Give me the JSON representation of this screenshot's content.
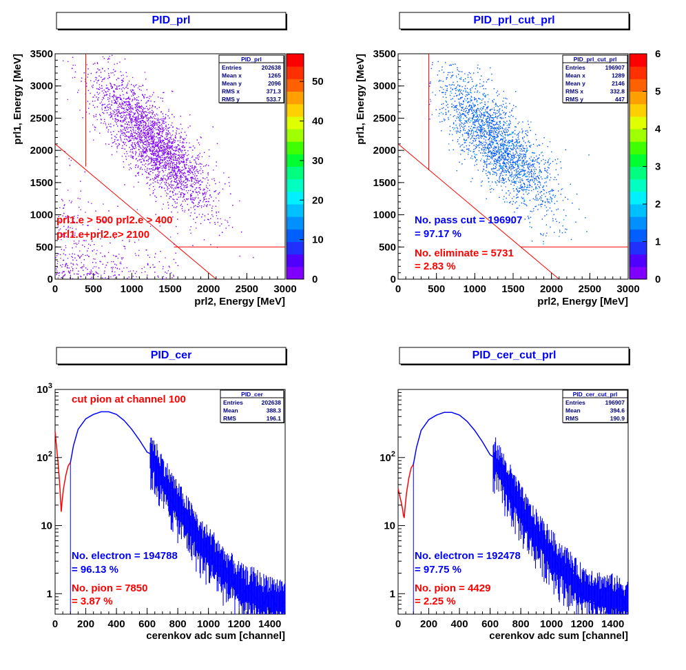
{
  "chart_data": [
    {
      "type": "heatmap",
      "title": "PID_prl",
      "xlabel": "prl2, Energy [MeV]",
      "ylabel": "prl1, Energy [MeV]",
      "xlim": [
        0,
        3000
      ],
      "ylim": [
        0,
        3500
      ],
      "xticks": [
        "0",
        "500",
        "1000",
        "1500",
        "2000",
        "2500",
        "3000"
      ],
      "yticks": [
        "0",
        "500",
        "1000",
        "1500",
        "2000",
        "2500",
        "3000",
        "3500"
      ],
      "colorbar": {
        "max": 57,
        "ticks": [
          "0",
          "10",
          "20",
          "30",
          "40",
          "50"
        ]
      },
      "point_color": "#8000ff",
      "stats": {
        "name": "PID_prl",
        "rows": [
          {
            "label": "Entries",
            "value": "202638"
          },
          {
            "label": "Mean x",
            "value": "1265"
          },
          {
            "label": "Mean y",
            "value": "2096"
          },
          {
            "label": "RMS x",
            "value": "371.3"
          },
          {
            "label": "RMS y",
            "value": "533.7"
          }
        ]
      },
      "cut_lines": {
        "vertical_x": 400,
        "vertical_y_from": 1750,
        "horizontal_y": 500,
        "horizontal_x_from": 1550,
        "diagonal_sum": 2100
      },
      "annotations": [
        {
          "text": "prl1.e > 500 prl2.e > 400",
          "color": "#ff0000"
        },
        {
          "text": "prl1.e+prl2.e> 2100",
          "color": "#ff0000"
        }
      ]
    },
    {
      "type": "heatmap",
      "title": "PID_prl_cut_prl",
      "xlabel": "prl2, Energy [MeV]",
      "ylabel": "prl1, Energy [MeV]",
      "xlim": [
        0,
        3000
      ],
      "ylim": [
        0,
        3500
      ],
      "xticks": [
        "0",
        "500",
        "1000",
        "1500",
        "2000",
        "2500",
        "3000"
      ],
      "yticks": [
        "0",
        "500",
        "1000",
        "1500",
        "2000",
        "2500",
        "3000",
        "3500"
      ],
      "colorbar": {
        "max": 6,
        "ticks": [
          "0",
          "1",
          "2",
          "3",
          "4",
          "5",
          "6"
        ]
      },
      "point_color": "#0a5cff",
      "stats": {
        "name": "PID_prl_cut_prl",
        "rows": [
          {
            "label": "Entries",
            "value": "196907"
          },
          {
            "label": "Mean x",
            "value": "1289"
          },
          {
            "label": "Mean y",
            "value": "2146"
          },
          {
            "label": "RMS x",
            "value": "332.8"
          },
          {
            "label": "RMS y",
            "value": "447"
          }
        ]
      },
      "cut_lines": {
        "vertical_x": 400,
        "vertical_y_from": 1700,
        "horizontal_y": 500,
        "horizontal_x_from": 1600,
        "diagonal_sum": 2100
      },
      "annotations": [
        {
          "text": "No. pass cut = 196907",
          "color": "#0000ff"
        },
        {
          "text": " = 97.17 %",
          "color": "#0000ff"
        },
        {
          "text": "No. eliminate = 5731",
          "color": "#ff0000"
        },
        {
          "text": " = 2.83 %",
          "color": "#ff0000"
        }
      ]
    },
    {
      "type": "line",
      "title": "PID_cer",
      "xlabel": "cerenkov adc sum [channel]",
      "ylabel": "",
      "xlim": [
        0,
        1500
      ],
      "ylim": [
        0.5,
        1000
      ],
      "log_y": true,
      "xticks": [
        "0",
        "200",
        "400",
        "600",
        "800",
        "1000",
        "1200",
        "1400"
      ],
      "cut_channel": 100,
      "series": [
        {
          "color": "#ff0000",
          "points": [
            [
              0,
              240
            ],
            [
              10,
              140
            ],
            [
              20,
              80
            ],
            [
              30,
              40
            ],
            [
              35,
              25
            ],
            [
              40,
              16
            ],
            [
              45,
              22
            ],
            [
              55,
              35
            ],
            [
              70,
              55
            ],
            [
              85,
              75
            ],
            [
              100,
              85
            ]
          ]
        },
        {
          "color": "#0000ff",
          "points": [
            [
              100,
              85
            ],
            [
              120,
              150
            ],
            [
              150,
              260
            ],
            [
              200,
              370
            ],
            [
              250,
              430
            ],
            [
              300,
              470
            ],
            [
              350,
              470
            ],
            [
              400,
              430
            ],
            [
              450,
              350
            ],
            [
              500,
              260
            ],
            [
              550,
              180
            ],
            [
              600,
              120
            ],
            [
              650,
              75
            ],
            [
              700,
              45
            ],
            [
              750,
              28
            ],
            [
              800,
              18
            ],
            [
              850,
              12
            ],
            [
              900,
              8
            ],
            [
              950,
              5
            ],
            [
              1000,
              4
            ],
            [
              1050,
              3
            ],
            [
              1100,
              2
            ],
            [
              1150,
              1.6
            ],
            [
              1200,
              1.2
            ],
            [
              1250,
              1
            ],
            [
              1300,
              1
            ],
            [
              1350,
              0.8
            ],
            [
              1400,
              0.8
            ],
            [
              1450,
              0.7
            ],
            [
              1500,
              0.7
            ]
          ]
        }
      ],
      "stats": {
        "name": "PID_cer",
        "rows": [
          {
            "label": "Entries",
            "value": "202638"
          },
          {
            "label": "Mean",
            "value": "388.3"
          },
          {
            "label": "RMS",
            "value": "196.1"
          }
        ]
      },
      "annotations": [
        {
          "text": "cut pion at channel 100",
          "color": "#ff0000"
        },
        {
          "text": "No. electron = 194788",
          "color": "#0000ff"
        },
        {
          "text": " = 96.13 %",
          "color": "#0000ff"
        },
        {
          "text": "No. pion = 7850",
          "color": "#ff0000"
        },
        {
          "text": "= 3.87 %",
          "color": "#ff0000"
        }
      ]
    },
    {
      "type": "line",
      "title": "PID_cer_cut_prl",
      "xlabel": "cerenkov adc sum [channel]",
      "ylabel": "",
      "xlim": [
        0,
        1500
      ],
      "ylim": [
        0.5,
        1000
      ],
      "log_y": true,
      "xticks": [
        "0",
        "200",
        "400",
        "600",
        "800",
        "1000",
        "1200",
        "1400"
      ],
      "cut_channel": 100,
      "series": [
        {
          "color": "#ff0000",
          "points": [
            [
              0,
              35
            ],
            [
              10,
              28
            ],
            [
              20,
              22
            ],
            [
              30,
              17
            ],
            [
              35,
              14
            ],
            [
              40,
              13
            ],
            [
              45,
              18
            ],
            [
              55,
              30
            ],
            [
              70,
              50
            ],
            [
              85,
              70
            ],
            [
              100,
              80
            ]
          ]
        },
        {
          "color": "#0000ff",
          "points": [
            [
              100,
              80
            ],
            [
              120,
              140
            ],
            [
              150,
              250
            ],
            [
              200,
              360
            ],
            [
              250,
              420
            ],
            [
              300,
              460
            ],
            [
              350,
              460
            ],
            [
              400,
              420
            ],
            [
              450,
              340
            ],
            [
              500,
              250
            ],
            [
              550,
              170
            ],
            [
              600,
              110
            ],
            [
              650,
              70
            ],
            [
              700,
              42
            ],
            [
              750,
              26
            ],
            [
              800,
              16
            ],
            [
              850,
              10
            ],
            [
              900,
              7
            ],
            [
              950,
              5
            ],
            [
              1000,
              3.5
            ],
            [
              1050,
              2.5
            ],
            [
              1100,
              2
            ],
            [
              1150,
              1.4
            ],
            [
              1200,
              1.1
            ],
            [
              1250,
              1
            ],
            [
              1300,
              0.9
            ],
            [
              1350,
              0.8
            ],
            [
              1400,
              0.8
            ],
            [
              1450,
              0.7
            ],
            [
              1500,
              0.7
            ]
          ]
        }
      ],
      "stats": {
        "name": "PID_cer_cut_prl",
        "rows": [
          {
            "label": "Entries",
            "value": "196907"
          },
          {
            "label": "Mean",
            "value": "394.6"
          },
          {
            "label": "RMS",
            "value": "190.9"
          }
        ]
      },
      "annotations": [
        {
          "text": "No. electron = 192478",
          "color": "#0000ff"
        },
        {
          "text": " = 97.75 %",
          "color": "#0000ff"
        },
        {
          "text": "No. pion = 4429",
          "color": "#ff0000"
        },
        {
          "text": "= 2.25 %",
          "color": "#ff0000"
        }
      ]
    }
  ]
}
